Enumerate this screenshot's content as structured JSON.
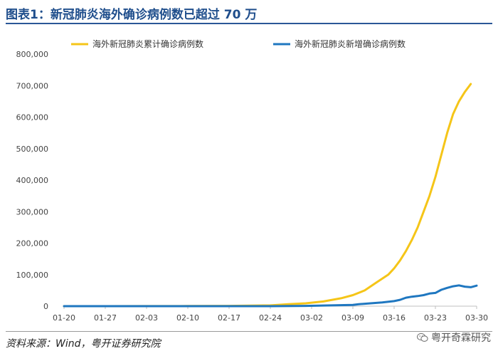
{
  "header": {
    "title": "图表1：新冠肺炎海外确诊病例数已超过 70 万"
  },
  "footer": {
    "source": "资料来源：Wind，粤开证券研究院",
    "watermark": "粤开奇霖研究"
  },
  "colors": {
    "cumulative": "#f5c518",
    "new": "#1f77c0",
    "axis": "#bfbfbf"
  },
  "chart_data": {
    "type": "line",
    "title": "",
    "ylim": [
      0,
      800000
    ],
    "yticks": [
      0,
      100000,
      200000,
      300000,
      400000,
      500000,
      600000,
      700000,
      800000
    ],
    "ytick_labels": [
      "0",
      "100,000",
      "200,000",
      "300,000",
      "400,000",
      "500,000",
      "600,000",
      "700,000",
      "800,000"
    ],
    "xtick_labels": [
      "01-20",
      "01-27",
      "02-03",
      "02-10",
      "02-17",
      "02-24",
      "03-02",
      "03-09",
      "03-16",
      "03-23",
      "03-30"
    ],
    "legend_position": "top",
    "series": [
      {
        "name": "海外新冠肺炎累计确诊病例数",
        "color": "#f5c518",
        "points": [
          [
            "01-20",
            0
          ],
          [
            "01-27",
            100
          ],
          [
            "02-03",
            300
          ],
          [
            "02-10",
            500
          ],
          [
            "02-17",
            900
          ],
          [
            "02-24",
            2500
          ],
          [
            "02-27",
            6000
          ],
          [
            "03-01",
            9000
          ],
          [
            "03-04",
            15000
          ],
          [
            "03-07",
            25000
          ],
          [
            "03-09",
            35000
          ],
          [
            "03-11",
            50000
          ],
          [
            "03-13",
            75000
          ],
          [
            "03-15",
            100000
          ],
          [
            "03-16",
            120000
          ],
          [
            "03-17",
            145000
          ],
          [
            "03-18",
            175000
          ],
          [
            "03-19",
            210000
          ],
          [
            "03-20",
            250000
          ],
          [
            "03-21",
            300000
          ],
          [
            "03-22",
            350000
          ],
          [
            "03-23",
            410000
          ],
          [
            "03-24",
            480000
          ],
          [
            "03-25",
            550000
          ],
          [
            "03-26",
            610000
          ],
          [
            "03-27",
            650000
          ],
          [
            "03-28",
            680000
          ],
          [
            "03-29",
            705000
          ]
        ]
      },
      {
        "name": "海外新冠肺炎新增确诊病例数",
        "color": "#1f77c0",
        "points": [
          [
            "01-20",
            0
          ],
          [
            "02-24",
            0
          ],
          [
            "03-01",
            1000
          ],
          [
            "03-09",
            4000
          ],
          [
            "03-10",
            6000
          ],
          [
            "03-12",
            9000
          ],
          [
            "03-14",
            12000
          ],
          [
            "03-16",
            16000
          ],
          [
            "03-17",
            20000
          ],
          [
            "03-18",
            27000
          ],
          [
            "03-19",
            30000
          ],
          [
            "03-20",
            32000
          ],
          [
            "03-21",
            35000
          ],
          [
            "03-22",
            40000
          ],
          [
            "03-23",
            42000
          ],
          [
            "03-24",
            52000
          ],
          [
            "03-25",
            58000
          ],
          [
            "03-26",
            63000
          ],
          [
            "03-27",
            66000
          ],
          [
            "03-28",
            62000
          ],
          [
            "03-29",
            60000
          ],
          [
            "03-30",
            65000
          ]
        ]
      }
    ]
  }
}
